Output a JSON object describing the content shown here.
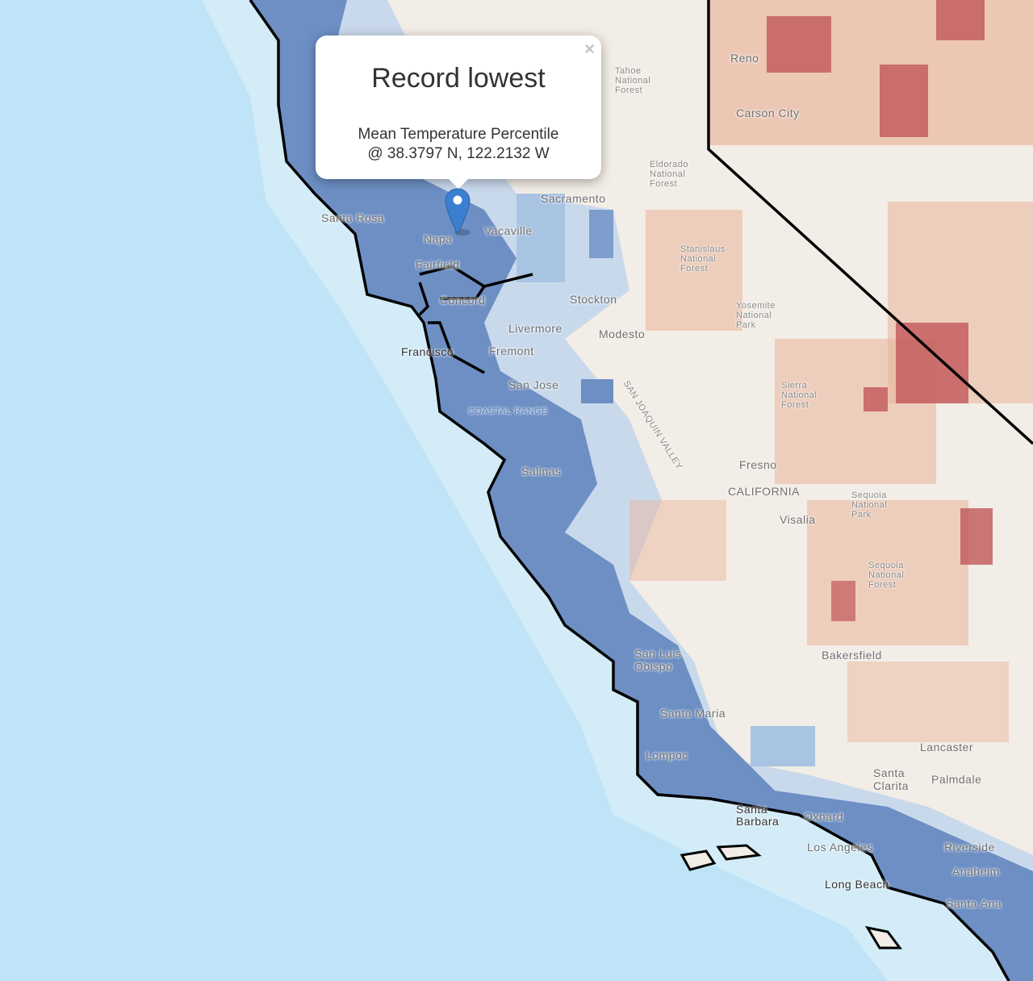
{
  "popup": {
    "title": "Record lowest",
    "line1": "Mean Temperature Percentile",
    "line2": "@ 38.3797 N, 122.2132 W",
    "close_label": "×"
  },
  "marker": {
    "icon": "map-pin-icon",
    "color": "#3a7fd0"
  },
  "colors": {
    "ocean": "#bfe3f7",
    "land": "#f2ede6",
    "cold": "#5b82bd",
    "cool": "#a9c4e3",
    "warm": "#eab79e",
    "hot": "#c0585a",
    "border": "#000000"
  },
  "cities": [
    {
      "name": "Reno"
    },
    {
      "name": "Carson City"
    },
    {
      "name": "Sacramento"
    },
    {
      "name": "Santa Rosa"
    },
    {
      "name": "Napa"
    },
    {
      "name": "Vacaville"
    },
    {
      "name": "Fairfield"
    },
    {
      "name": "Concord"
    },
    {
      "name": "Stockton"
    },
    {
      "name": "Livermore"
    },
    {
      "name": "Modesto"
    },
    {
      "name": "Francisco"
    },
    {
      "name": "Fremont"
    },
    {
      "name": "San Jose"
    },
    {
      "name": "Salinas"
    },
    {
      "name": "Fresno"
    },
    {
      "name": "CALIFORNIA"
    },
    {
      "name": "Visalia"
    },
    {
      "name": "Bakersfield"
    },
    {
      "name": "San Luis Obispo"
    },
    {
      "name": "Santa Maria"
    },
    {
      "name": "Lompoc"
    },
    {
      "name": "Lancaster"
    },
    {
      "name": "Santa Clarita"
    },
    {
      "name": "Palmdale"
    },
    {
      "name": "Santa Barbara"
    },
    {
      "name": "Oxnard"
    },
    {
      "name": "Los Angeles"
    },
    {
      "name": "Riverside"
    },
    {
      "name": "Long Beach"
    },
    {
      "name": "Anaheim"
    },
    {
      "name": "Santa Ana"
    }
  ],
  "features": [
    {
      "name": "Tahoe National Forest"
    },
    {
      "name": "Eldorado National Forest"
    },
    {
      "name": "Stanislaus National Forest"
    },
    {
      "name": "Yosemite National Park"
    },
    {
      "name": "Sierra National Forest"
    },
    {
      "name": "Sequoia National Park"
    },
    {
      "name": "Sequoia National Forest"
    },
    {
      "name": "COASTAL RANGE"
    },
    {
      "name": "SAN JOAQUIN VALLEY"
    }
  ]
}
